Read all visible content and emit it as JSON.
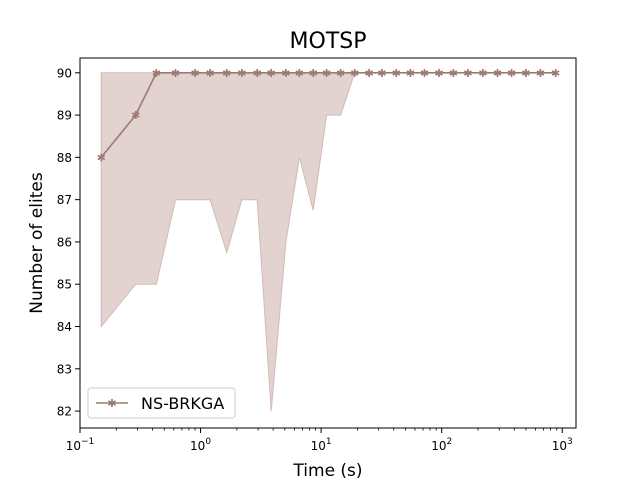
{
  "chart_data": {
    "type": "line",
    "title": "MOTSP",
    "xlabel": "Time (s)",
    "ylabel": "Number of elites",
    "xscale": "log",
    "xlim": [
      0.1,
      1300
    ],
    "ylim": [
      81.6,
      90.35
    ],
    "grid": false,
    "legend_position": "lower-left",
    "x_tick_labels": [
      {
        "base": "10",
        "exp": "−1",
        "value": 0.1
      },
      {
        "base": "10",
        "exp": "0",
        "value": 1
      },
      {
        "base": "10",
        "exp": "1",
        "value": 10
      },
      {
        "base": "10",
        "exp": "2",
        "value": 100
      },
      {
        "base": "10",
        "exp": "3",
        "value": 1000
      }
    ],
    "y_ticks": [
      82,
      83,
      84,
      85,
      86,
      87,
      88,
      89,
      90
    ],
    "y_tick_labels": [
      "82",
      "83",
      "84",
      "85",
      "86",
      "87",
      "88",
      "89",
      "90"
    ],
    "line_color": "#9c7a72",
    "band_color": "#e2d2d0",
    "band_edge_color": "#d2bab6",
    "series": [
      {
        "name": "NS-BRKGA",
        "x": [
          0.15,
          0.29,
          0.43,
          0.62,
          0.9,
          1.2,
          1.65,
          2.2,
          2.95,
          3.85,
          5.1,
          6.6,
          8.6,
          11.1,
          14.5,
          19,
          25,
          32,
          42,
          55,
          72,
          95,
          125,
          165,
          220,
          290,
          380,
          500,
          660,
          880
        ],
        "y": [
          88,
          89,
          90,
          90,
          90,
          90,
          90,
          90,
          90,
          90,
          90,
          90,
          90,
          90,
          90,
          90,
          90,
          90,
          90,
          90,
          90,
          90,
          90,
          90,
          90,
          90,
          90,
          90,
          90,
          90
        ],
        "lower": [
          84,
          85,
          85,
          87,
          87,
          87,
          85.75,
          87,
          87,
          82,
          86,
          88,
          86.75,
          89,
          89,
          90,
          90,
          90,
          90,
          90,
          90,
          90,
          90,
          90,
          90,
          90,
          90,
          90,
          90,
          90
        ],
        "upper": [
          90,
          90,
          90,
          90,
          90,
          90,
          90,
          90,
          90,
          90,
          90,
          90,
          90,
          90,
          90,
          90,
          90,
          90,
          90,
          90,
          90,
          90,
          90,
          90,
          90,
          90,
          90,
          90,
          90,
          90
        ]
      }
    ]
  }
}
